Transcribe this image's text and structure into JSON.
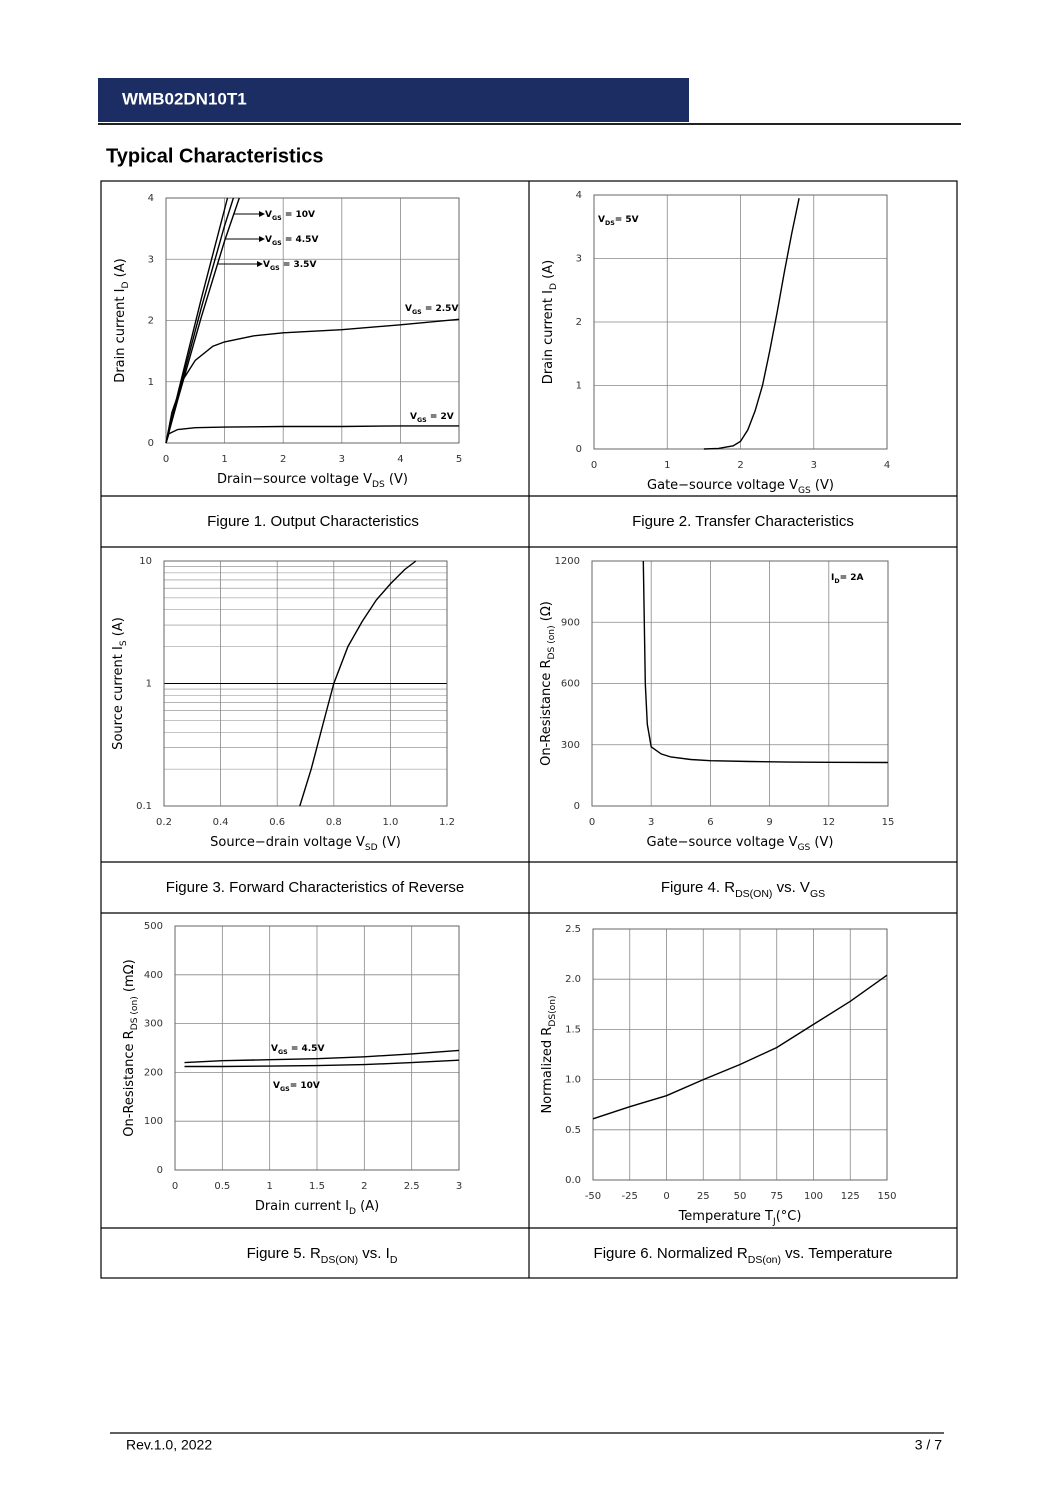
{
  "header": {
    "title": "WMB02DN10T1"
  },
  "section_title": "Typical Characteristics",
  "chart_data": [
    {
      "type": "line",
      "caption": [
        "Figure 1. Output Characteristics"
      ],
      "x_label": [
        "Drain−source voltage V",
        "DS",
        " (V)"
      ],
      "y_label": [
        "Drain current I",
        "D",
        " (A)"
      ],
      "xlim": [
        0,
        5
      ],
      "ylim": [
        0,
        4
      ],
      "xticks": [
        0,
        1,
        2,
        3,
        4,
        5
      ],
      "yticks": [
        0,
        1,
        2,
        3,
        4
      ],
      "grid": true,
      "series": [
        {
          "label": [
            "V",
            "GS",
            " = 10V"
          ],
          "color": "#000000",
          "x": [
            0,
            0.2,
            0.6,
            1.05
          ],
          "values": [
            0,
            0.8,
            2.35,
            4
          ]
        },
        {
          "label": [
            "V",
            "GS",
            " = 4.5V"
          ],
          "color": "#000000",
          "x": [
            0,
            0.2,
            0.6,
            1.0,
            1.15
          ],
          "values": [
            0,
            0.75,
            2.2,
            3.55,
            4
          ]
        },
        {
          "label": [
            "V",
            "GS",
            " = 3.5V"
          ],
          "color": "#000000",
          "x": [
            0,
            0.2,
            0.6,
            1.0,
            1.25
          ],
          "values": [
            0,
            0.7,
            2.05,
            3.3,
            4
          ]
        },
        {
          "label": [
            "V",
            "GS",
            " = 2.5V"
          ],
          "color": "#000000",
          "x": [
            0,
            0.1,
            0.3,
            0.5,
            0.8,
            1,
            1.5,
            2,
            3,
            4,
            5
          ],
          "values": [
            0,
            0.5,
            1.05,
            1.35,
            1.58,
            1.65,
            1.75,
            1.8,
            1.85,
            1.93,
            2.02
          ]
        },
        {
          "label": [
            "V",
            "GS",
            " = 2V"
          ],
          "color": "#000000",
          "x": [
            0,
            0.05,
            0.2,
            0.5,
            1,
            2,
            3,
            4,
            5
          ],
          "values": [
            0,
            0.15,
            0.22,
            0.25,
            0.26,
            0.27,
            0.27,
            0.28,
            0.28
          ]
        }
      ]
    },
    {
      "type": "line",
      "caption": [
        "Figure 2. Transfer Characteristics"
      ],
      "x_label": [
        "Gate−source voltage V",
        "GS",
        " (V)"
      ],
      "y_label": [
        "Drain current I",
        "D",
        " (A)"
      ],
      "xlim": [
        0,
        4
      ],
      "ylim": [
        0,
        4
      ],
      "xticks": [
        0,
        1,
        2,
        3,
        4
      ],
      "yticks": [
        0,
        1,
        2,
        3,
        4
      ],
      "grid": true,
      "series": [
        {
          "label": [
            "V",
            "DS",
            "= 5V"
          ],
          "color": "#000000",
          "x": [
            1.5,
            1.7,
            1.9,
            2.0,
            2.1,
            2.2,
            2.3,
            2.4,
            2.5,
            2.6,
            2.7,
            2.8
          ],
          "values": [
            0,
            0.01,
            0.05,
            0.12,
            0.3,
            0.6,
            1.0,
            1.55,
            2.15,
            2.8,
            3.4,
            3.95
          ]
        }
      ]
    },
    {
      "type": "line",
      "caption": [
        "Figure 3. Forward Characteristics of Reverse"
      ],
      "x_label": [
        "Source−drain voltage V",
        "SD",
        " (V)"
      ],
      "y_label": [
        "Source current I",
        "S",
        " (A)"
      ],
      "xlim": [
        0.2,
        1.2
      ],
      "ylim": [
        0.1,
        10
      ],
      "y_scale": "log",
      "xticks": [
        0.2,
        0.4,
        0.6,
        0.8,
        {
          "value": 1,
          "label": "1.0"
        },
        1.2
      ],
      "yticks": [
        0.1,
        1,
        10
      ],
      "grid": true,
      "series": [
        {
          "color": "#000000",
          "x": [
            0.68,
            0.72,
            0.76,
            0.8,
            0.85,
            0.9,
            0.95,
            1.0,
            1.05,
            1.09
          ],
          "values": [
            0.1,
            0.2,
            0.45,
            1,
            2,
            3.2,
            4.8,
            6.5,
            8.5,
            10
          ]
        }
      ]
    },
    {
      "type": "line",
      "caption": [
        "Figure 4. R",
        "DS(ON)",
        "  vs. V",
        "GS"
      ],
      "x_label": [
        "Gate−source voltage V",
        "GS",
        " (V)"
      ],
      "y_label": [
        "On-Resistance R",
        "DS (on)",
        " (Ω)"
      ],
      "xlim": [
        0,
        15
      ],
      "ylim": [
        0,
        1200
      ],
      "xticks": [
        0,
        3,
        6,
        9,
        12,
        15
      ],
      "yticks": [
        0,
        300,
        600,
        900,
        1200
      ],
      "grid": true,
      "series": [
        {
          "label": [
            "I",
            "D",
            "= 2A"
          ],
          "color": "#000000",
          "x": [
            2.6,
            2.65,
            2.7,
            2.8,
            3,
            3.5,
            4,
            5,
            6,
            8,
            10,
            12,
            15
          ],
          "values": [
            1200,
            900,
            600,
            400,
            290,
            255,
            240,
            228,
            222,
            218,
            215,
            214,
            213
          ]
        }
      ]
    },
    {
      "type": "line",
      "caption": [
        "Figure 5. R",
        "DS(ON)",
        " vs. I",
        "D"
      ],
      "x_label": [
        "Drain current I",
        "D",
        " (A)"
      ],
      "y_label": [
        "On-Resistance R",
        "DS (on)",
        " (mΩ)"
      ],
      "xlim": [
        0,
        3
      ],
      "ylim": [
        0,
        500
      ],
      "xticks": [
        0,
        0.5,
        1,
        1.5,
        2,
        2.5,
        3
      ],
      "yticks": [
        0,
        100,
        200,
        300,
        400,
        500
      ],
      "grid": true,
      "series": [
        {
          "label": [
            "V",
            "GS",
            " = 4.5V"
          ],
          "color": "#000000",
          "x": [
            0.1,
            0.5,
            1,
            1.5,
            2,
            2.5,
            3
          ],
          "values": [
            220,
            224,
            226,
            228,
            232,
            238,
            245
          ]
        },
        {
          "label": [
            "V",
            "GS",
            "= 10V"
          ],
          "color": "#000000",
          "x": [
            0.1,
            0.5,
            1,
            1.5,
            2,
            2.5,
            3
          ],
          "values": [
            212,
            212,
            213,
            214,
            216,
            220,
            225
          ]
        }
      ]
    },
    {
      "type": "line",
      "caption": [
        "Figure 6. Normalized R",
        "DS(on)",
        " vs. Temperature"
      ],
      "x_label": [
        "Temperature T",
        "J",
        "(°C)"
      ],
      "y_label": [
        "Normalized R",
        "DS(on)"
      ],
      "xlim": [
        -50,
        150
      ],
      "ylim": [
        0,
        2.5
      ],
      "xticks": [
        -50,
        -25,
        0,
        25,
        50,
        75,
        100,
        125,
        150
      ],
      "yticks": [
        {
          "value": 0,
          "label": "0.0"
        },
        0.5,
        {
          "value": 1,
          "label": "1.0"
        },
        1.5,
        {
          "value": 2,
          "label": "2.0"
        },
        2.5
      ],
      "grid": true,
      "series": [
        {
          "color": "#000000",
          "x": [
            -50,
            -25,
            0,
            25,
            50,
            75,
            100,
            125,
            150
          ],
          "values": [
            0.61,
            0.73,
            0.84,
            1.0,
            1.15,
            1.32,
            1.55,
            1.78,
            2.04
          ]
        }
      ]
    }
  ],
  "footer": {
    "revision": "Rev.1.0, 2022",
    "page": "3 / 7"
  }
}
